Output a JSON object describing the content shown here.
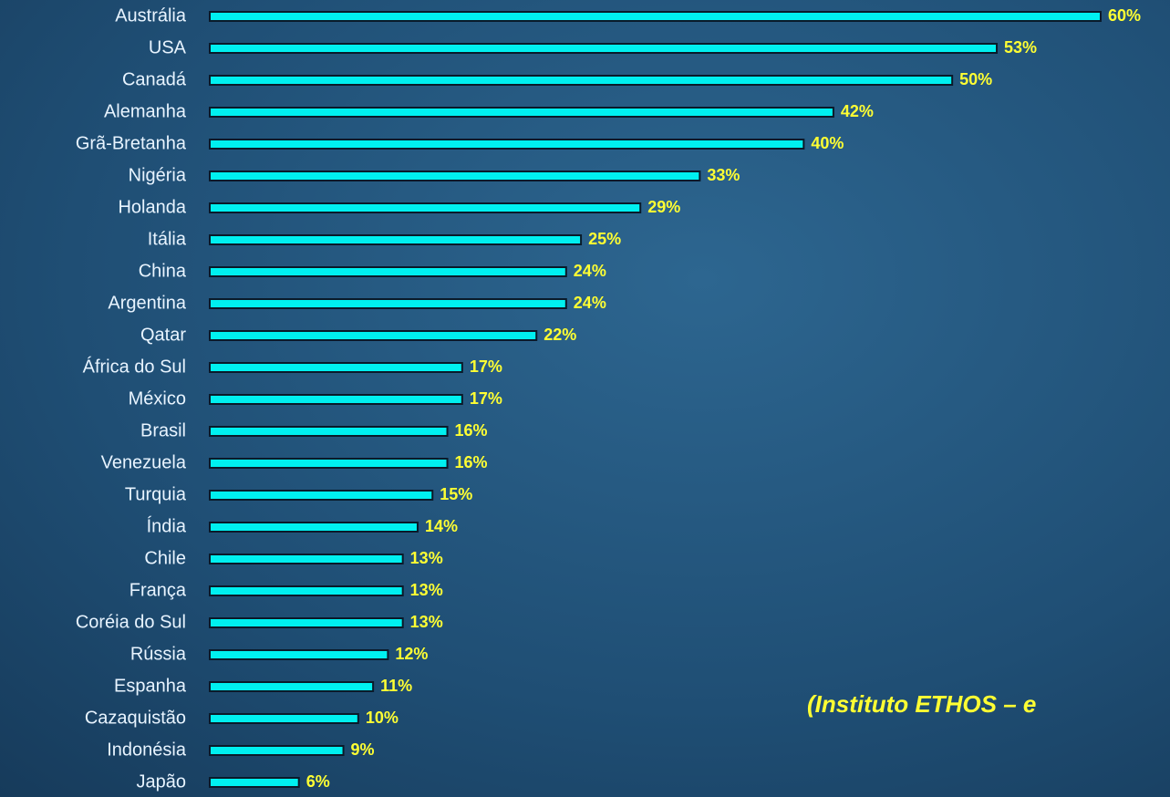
{
  "chart_data": {
    "type": "barh",
    "categories": [
      "Austrália",
      "USA",
      "Canadá",
      "Alemanha",
      "Grã-Bretanha",
      "Nigéria",
      "Holanda",
      "Itália",
      "China",
      "Argentina",
      "Qatar",
      "África do Sul",
      "México",
      "Brasil",
      "Venezuela",
      "Turquia",
      "Índia",
      "Chile",
      "França",
      "Coréia do Sul",
      "Rússia",
      "Espanha",
      "Cazaquistão",
      "Indonésia",
      "Japão"
    ],
    "values": [
      60,
      53,
      50,
      42,
      40,
      33,
      29,
      25,
      24,
      24,
      22,
      17,
      17,
      16,
      16,
      15,
      14,
      13,
      13,
      13,
      12,
      11,
      10,
      9,
      6
    ],
    "value_labels": [
      "60%",
      "53%",
      "50%",
      "42%",
      "40%",
      "33%",
      "29%",
      "25%",
      "24%",
      "24%",
      "22%",
      "17%",
      "17%",
      "16%",
      "16%",
      "15%",
      "14%",
      "13%",
      "13%",
      "13%",
      "12%",
      "11%",
      "10%",
      "9%",
      "6%"
    ],
    "color": "#00f0f0",
    "annotation": "(Instituto ETHOS – e"
  }
}
